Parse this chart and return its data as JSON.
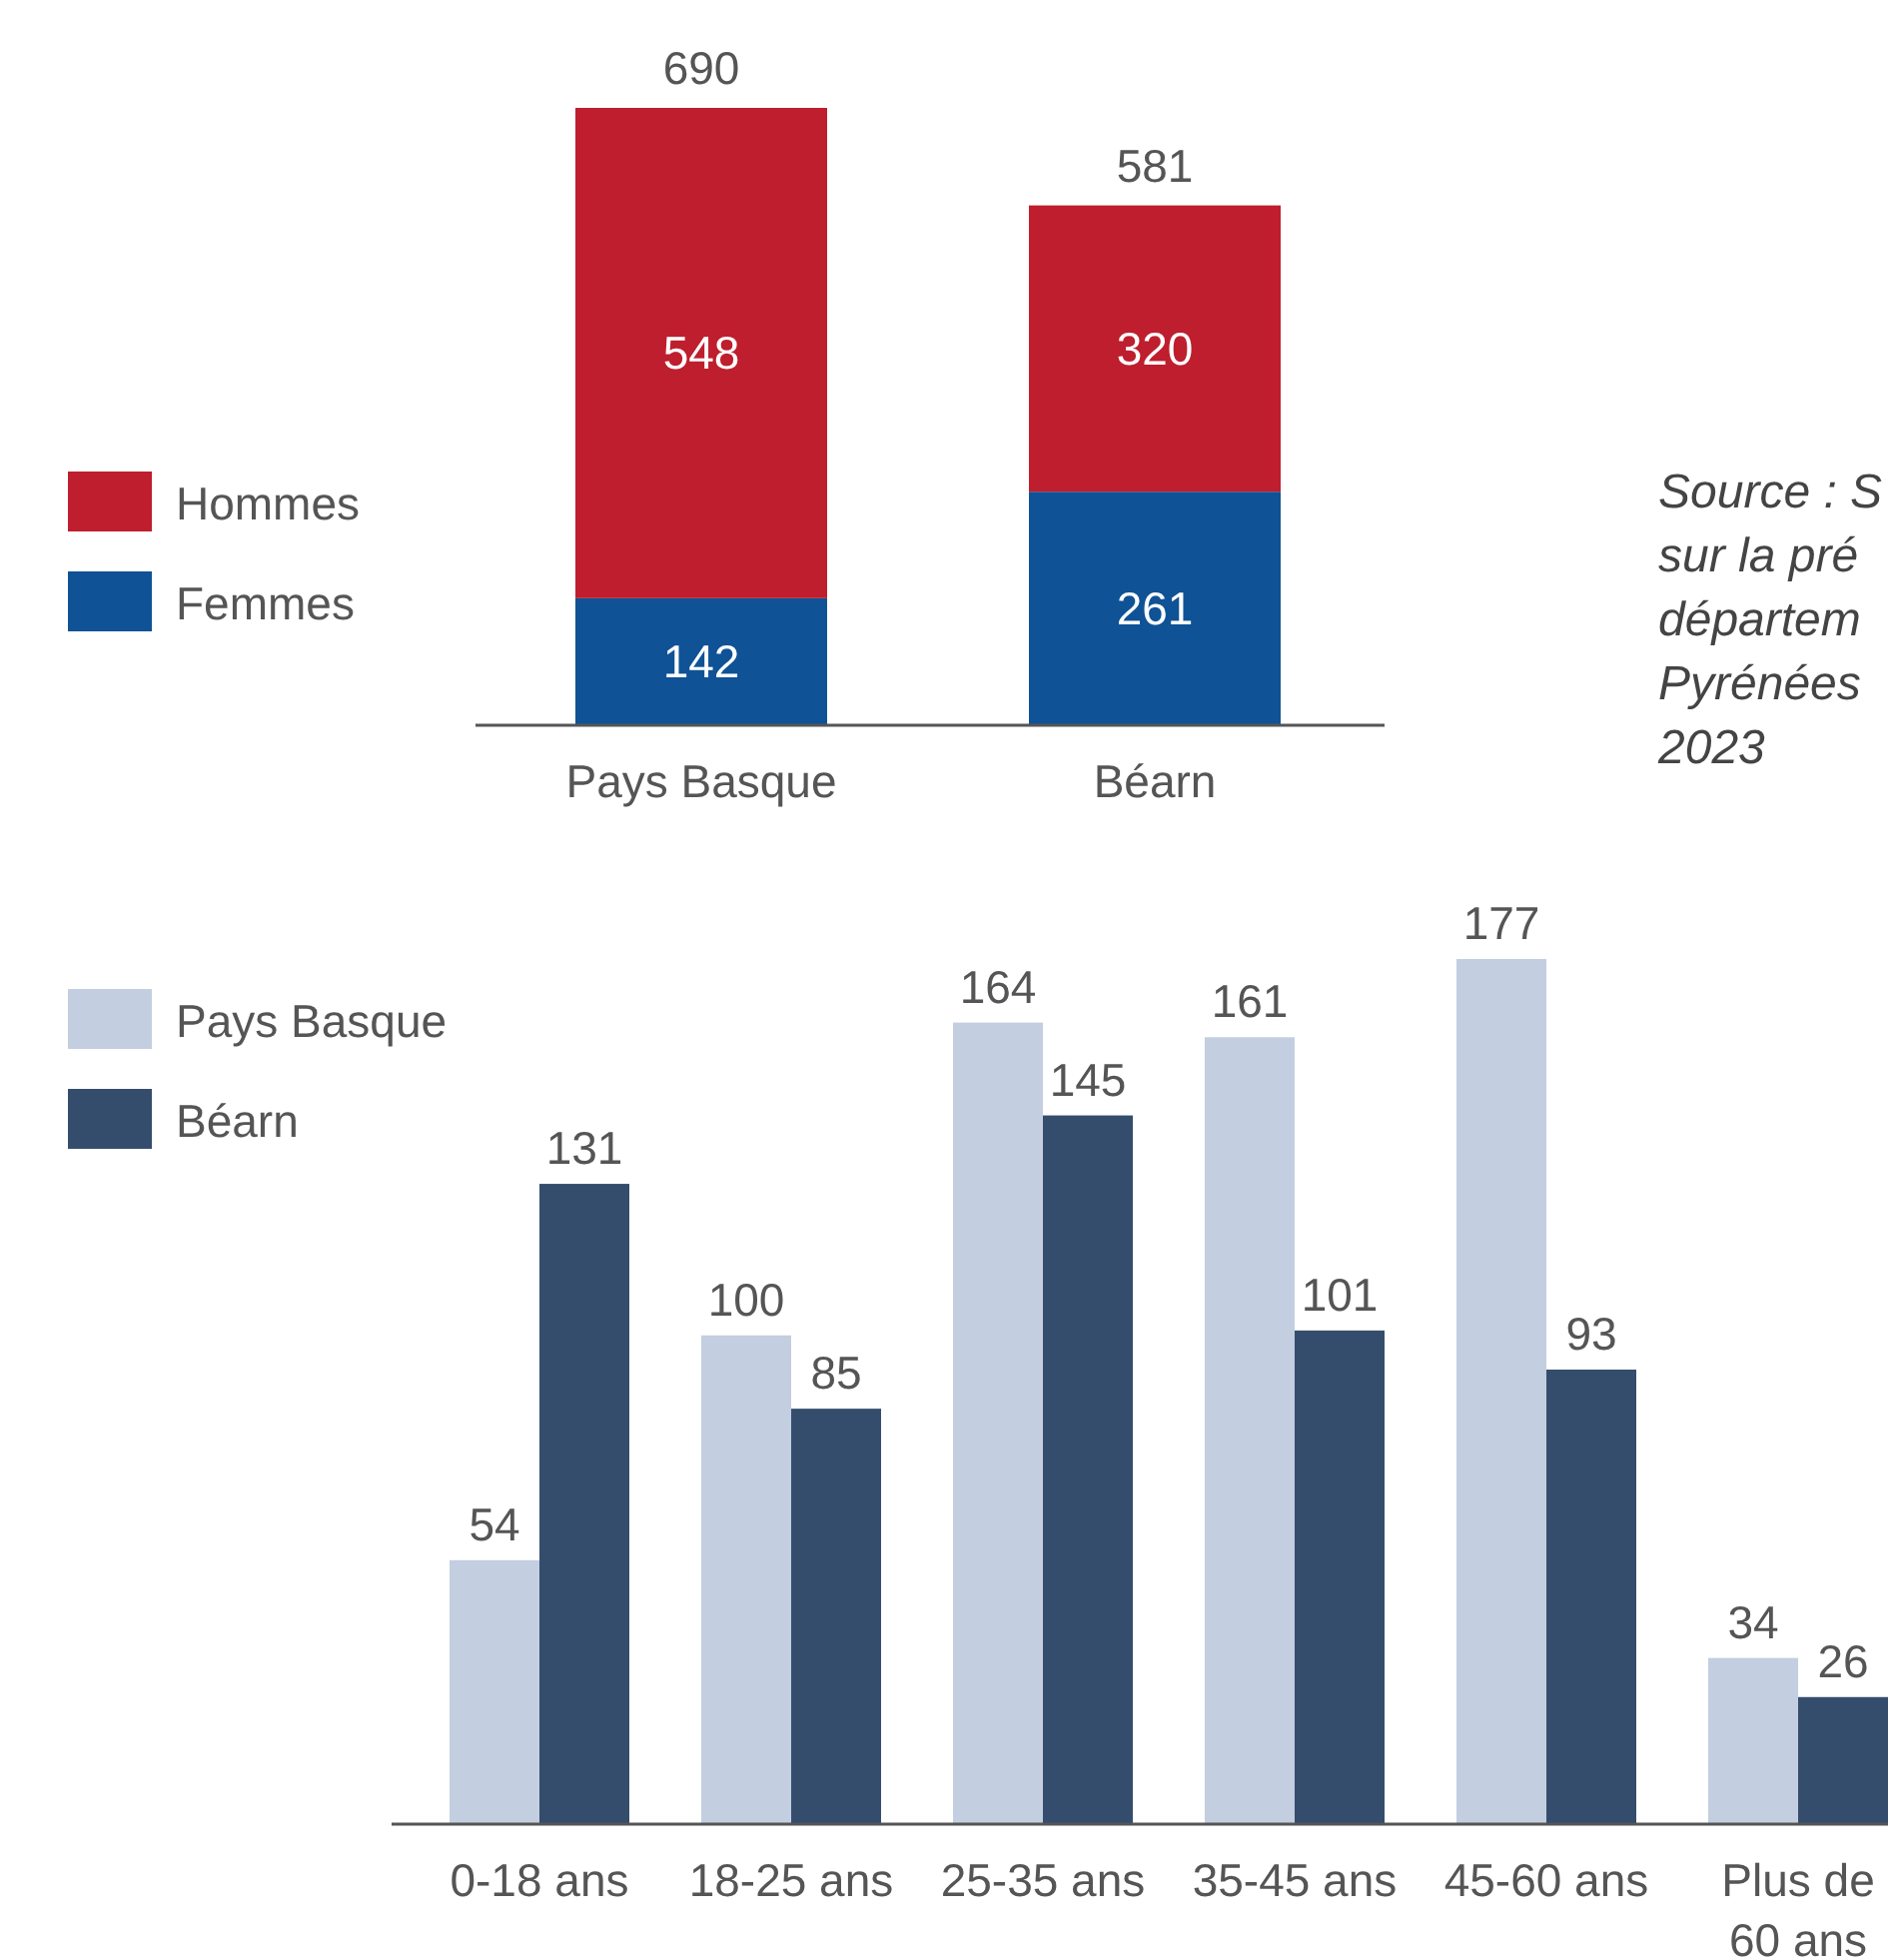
{
  "chart_data": [
    {
      "type": "bar",
      "stacked": true,
      "categories": [
        "Pays Basque",
        "Béarn"
      ],
      "series": [
        {
          "name": "Femmes",
          "color": "#0f5296",
          "values": [
            142,
            261
          ]
        },
        {
          "name": "Hommes",
          "color": "#be1e2d",
          "values": [
            548,
            320
          ]
        }
      ],
      "totals": [
        "690",
        "581"
      ],
      "data_labels": true,
      "legend": "left",
      "annotations": [
        "Source : S\nsur la pré\ndépartem\nPyrénées\n2023"
      ]
    },
    {
      "type": "bar",
      "categories": [
        "0-18 ans",
        "18-25 ans",
        "25-35 ans",
        "35-45 ans",
        "45-60 ans",
        "Plus de 60 ans"
      ],
      "series": [
        {
          "name": "Pays Basque",
          "color": "#c3cee0",
          "values": [
            54,
            100,
            164,
            161,
            177,
            34
          ]
        },
        {
          "name": "Béarn",
          "color": "#354d6d",
          "values": [
            131,
            85,
            145,
            101,
            93,
            26
          ]
        }
      ],
      "data_labels": true,
      "legend": "left"
    }
  ]
}
